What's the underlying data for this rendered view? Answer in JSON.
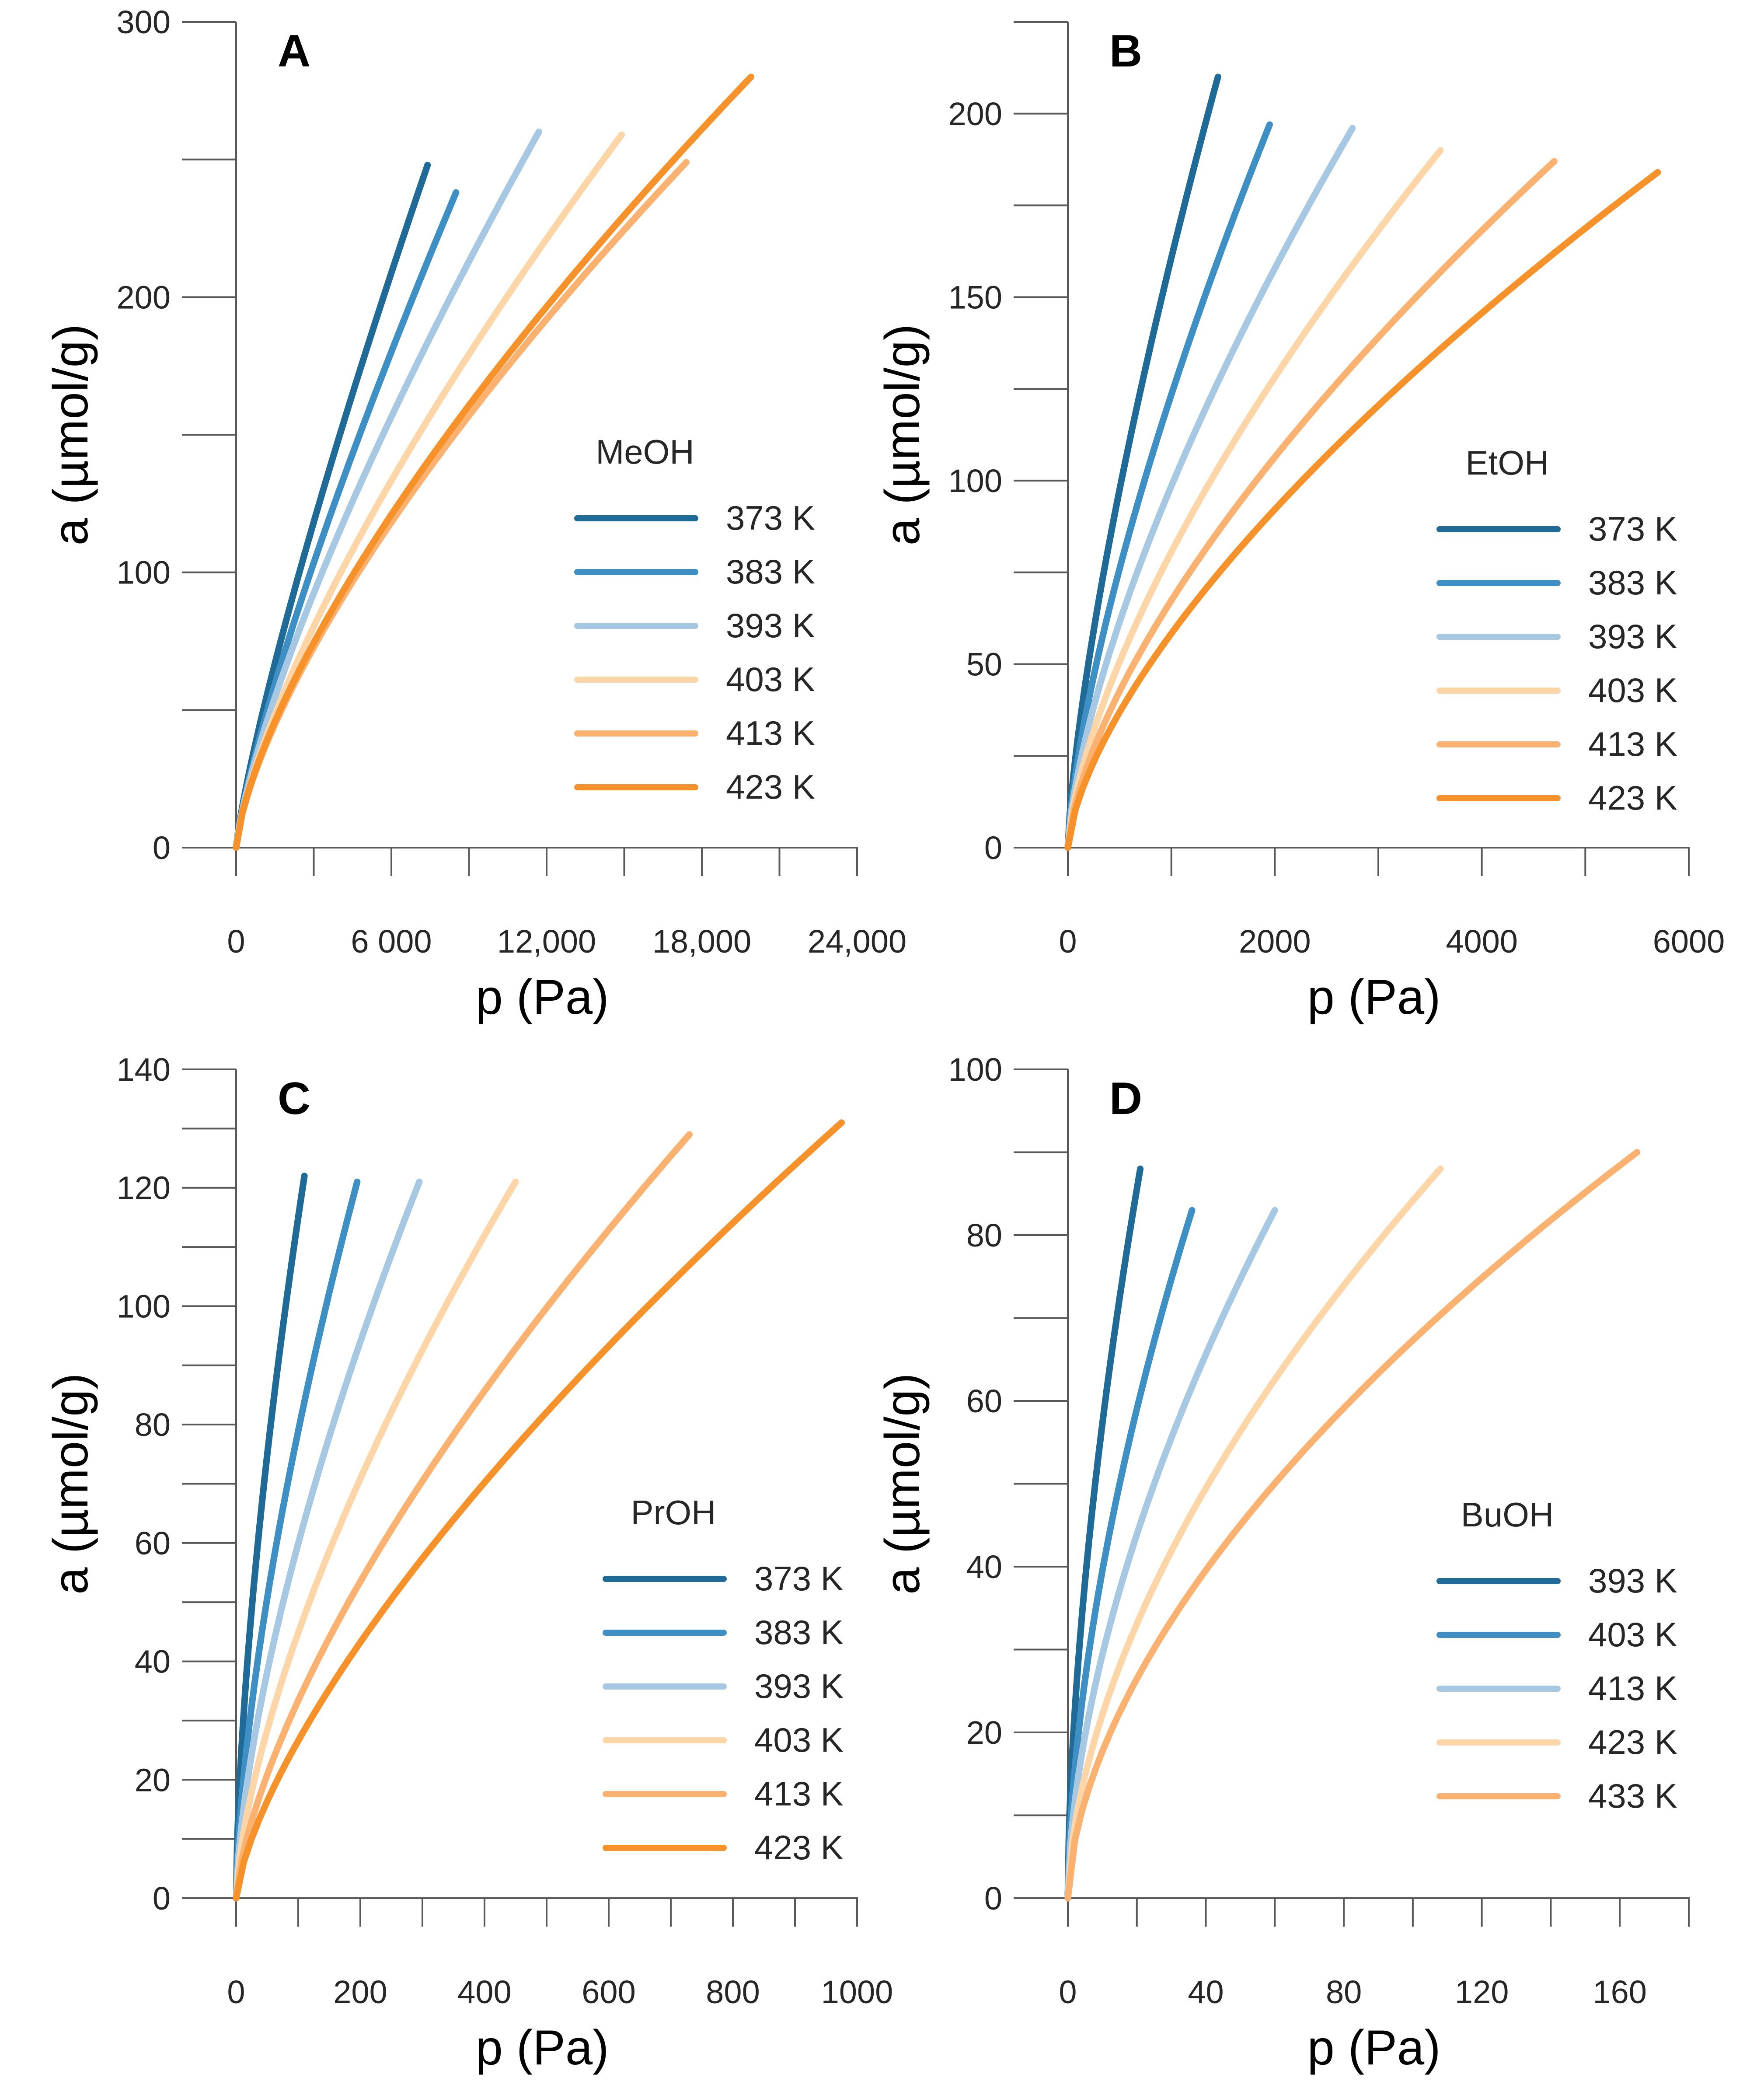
{
  "chart_data": [
    {
      "id": "A",
      "type": "line",
      "panel_label": "A",
      "xlabel": "p (Pa)",
      "ylabel": "a (µmol/g)",
      "xlim": [
        0,
        24000
      ],
      "ylim": [
        0,
        300
      ],
      "x_ticks": [
        0,
        6000,
        12000,
        18000,
        24000
      ],
      "x_tick_labels": [
        "0",
        "6 000",
        "12,000",
        "18,000",
        "24,000"
      ],
      "x_minor_step": 3000,
      "y_ticks": [
        0,
        100,
        200,
        300
      ],
      "y_tick_labels": [
        "0",
        "100",
        "200",
        "300"
      ],
      "y_minor_step": 50,
      "legend_title": "MeOH",
      "legend_position": "center-right",
      "series": [
        {
          "name": "373 K",
          "color": "#1f6a96",
          "pmax": 7400,
          "amax": 248,
          "n": 0.82
        },
        {
          "name": "383 K",
          "color": "#3d8fc4",
          "pmax": 8500,
          "amax": 238,
          "n": 0.8
        },
        {
          "name": "393 K",
          "color": "#a7c8e3",
          "pmax": 11700,
          "amax": 260,
          "n": 0.76
        },
        {
          "name": "403 K",
          "color": "#fdd5a7",
          "pmax": 14900,
          "amax": 259,
          "n": 0.73
        },
        {
          "name": "413 K",
          "color": "#fbb270",
          "pmax": 17400,
          "amax": 249,
          "n": 0.7
        },
        {
          "name": "423 K",
          "color": "#f7922b",
          "pmax": 19900,
          "amax": 280,
          "n": 0.7
        }
      ]
    },
    {
      "id": "B",
      "type": "line",
      "panel_label": "B",
      "xlabel": "p (Pa)",
      "ylabel": "a (µmol/g)",
      "xlim": [
        0,
        6000
      ],
      "ylim": [
        0,
        225
      ],
      "x_ticks": [
        0,
        2000,
        4000,
        6000
      ],
      "x_tick_labels": [
        "0",
        "2000",
        "4000",
        "6000"
      ],
      "x_minor_step": 1000,
      "y_ticks": [
        0,
        50,
        100,
        150,
        200
      ],
      "y_tick_labels": [
        "0",
        "50",
        "100",
        "150",
        "200"
      ],
      "y_minor_step": 25,
      "legend_title": "EtOH",
      "legend_position": "lower-right",
      "series": [
        {
          "name": "373 K",
          "color": "#1f6a96",
          "pmax": 1450,
          "amax": 210,
          "n": 0.72
        },
        {
          "name": "383 K",
          "color": "#3d8fc4",
          "pmax": 1950,
          "amax": 197,
          "n": 0.7
        },
        {
          "name": "393 K",
          "color": "#a7c8e3",
          "pmax": 2750,
          "amax": 196,
          "n": 0.68
        },
        {
          "name": "403 K",
          "color": "#fdd5a7",
          "pmax": 3600,
          "amax": 190,
          "n": 0.67
        },
        {
          "name": "413 K",
          "color": "#fbb270",
          "pmax": 4700,
          "amax": 187,
          "n": 0.66
        },
        {
          "name": "423 K",
          "color": "#f7922b",
          "pmax": 5700,
          "amax": 184,
          "n": 0.66
        }
      ]
    },
    {
      "id": "C",
      "type": "line",
      "panel_label": "C",
      "xlabel": "p (Pa)",
      "ylabel": "a (µmol/g)",
      "xlim": [
        0,
        1000
      ],
      "ylim": [
        0,
        140
      ],
      "x_ticks": [
        0,
        200,
        400,
        600,
        800,
        1000
      ],
      "x_tick_labels": [
        "0",
        "200",
        "400",
        "600",
        "800",
        "1000"
      ],
      "x_minor_step": 100,
      "y_ticks": [
        0,
        20,
        40,
        60,
        80,
        100,
        120,
        140
      ],
      "y_tick_labels": [
        "0",
        "20",
        "40",
        "60",
        "80",
        "100",
        "120",
        "140"
      ],
      "y_minor_step": 10,
      "legend_title": "PrOH",
      "legend_position": "lower-right",
      "series": [
        {
          "name": "373 K",
          "color": "#1f6a96",
          "pmax": 110,
          "amax": 122,
          "n": 0.62
        },
        {
          "name": "383 K",
          "color": "#3d8fc4",
          "pmax": 195,
          "amax": 121,
          "n": 0.64
        },
        {
          "name": "393 K",
          "color": "#a7c8e3",
          "pmax": 295,
          "amax": 121,
          "n": 0.65
        },
        {
          "name": "403 K",
          "color": "#fdd5a7",
          "pmax": 450,
          "amax": 121,
          "n": 0.66
        },
        {
          "name": "413 K",
          "color": "#fbb270",
          "pmax": 730,
          "amax": 129,
          "n": 0.68
        },
        {
          "name": "423 K",
          "color": "#f7922b",
          "pmax": 975,
          "amax": 131,
          "n": 0.7
        }
      ]
    },
    {
      "id": "D",
      "type": "line",
      "panel_label": "D",
      "xlabel": "p (Pa)",
      "ylabel": "a (µmol/g)",
      "xlim": [
        0,
        180
      ],
      "ylim": [
        0,
        100
      ],
      "x_ticks": [
        0,
        40,
        80,
        120,
        160
      ],
      "x_tick_labels": [
        "0",
        "40",
        "80",
        "120",
        "160"
      ],
      "x_minor_step": 20,
      "y_ticks": [
        0,
        20,
        40,
        60,
        80,
        100
      ],
      "y_tick_labels": [
        "0",
        "20",
        "40",
        "60",
        "80",
        "100"
      ],
      "y_minor_step": 10,
      "legend_title": "BuOH",
      "legend_position": "lower-right",
      "series": [
        {
          "name": "393 K",
          "color": "#1f6a96",
          "pmax": 21,
          "amax": 88,
          "n": 0.58
        },
        {
          "name": "403 K",
          "color": "#3d8fc4",
          "pmax": 36,
          "amax": 83,
          "n": 0.58
        },
        {
          "name": "413 K",
          "color": "#a7c8e3",
          "pmax": 60,
          "amax": 83,
          "n": 0.58
        },
        {
          "name": "423 K",
          "color": "#fdd5a7",
          "pmax": 108,
          "amax": 88,
          "n": 0.58
        },
        {
          "name": "433 K",
          "color": "#fbb270",
          "pmax": 165,
          "amax": 90,
          "n": 0.58
        }
      ]
    }
  ]
}
